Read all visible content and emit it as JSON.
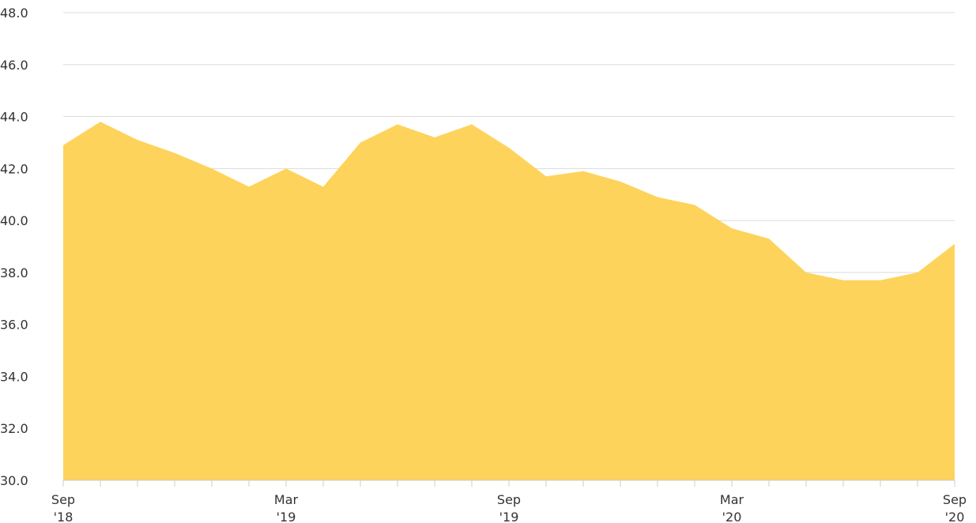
{
  "chart_data": {
    "type": "area",
    "categories": [
      "Sep '18",
      null,
      null,
      null,
      null,
      null,
      "Mar '19",
      null,
      null,
      null,
      null,
      null,
      "Sep '19",
      null,
      null,
      null,
      null,
      null,
      "Mar '20",
      null,
      null,
      null,
      null,
      null,
      "Sep '20"
    ],
    "values": [
      42.9,
      43.8,
      43.1,
      42.6,
      42.0,
      41.3,
      42.0,
      41.3,
      43.0,
      43.7,
      43.2,
      43.7,
      42.8,
      41.7,
      41.9,
      41.5,
      40.9,
      40.6,
      39.7,
      39.3,
      38.0,
      37.7,
      37.7,
      38.0,
      39.1
    ],
    "color": "#fdd35b",
    "ylim": [
      30,
      48
    ],
    "yticks": [
      {
        "value": 30,
        "label": "30.0"
      },
      {
        "value": 32,
        "label": "32.0"
      },
      {
        "value": 34,
        "label": "34.0"
      },
      {
        "value": 36,
        "label": "36.0"
      },
      {
        "value": 38,
        "label": "38.0"
      },
      {
        "value": 40,
        "label": "40.0"
      },
      {
        "value": 42,
        "label": "42.0"
      },
      {
        "value": 44,
        "label": "44.0"
      },
      {
        "value": 46,
        "label": "46.0"
      },
      {
        "value": 48,
        "label": "48.0"
      }
    ],
    "grid": true
  }
}
